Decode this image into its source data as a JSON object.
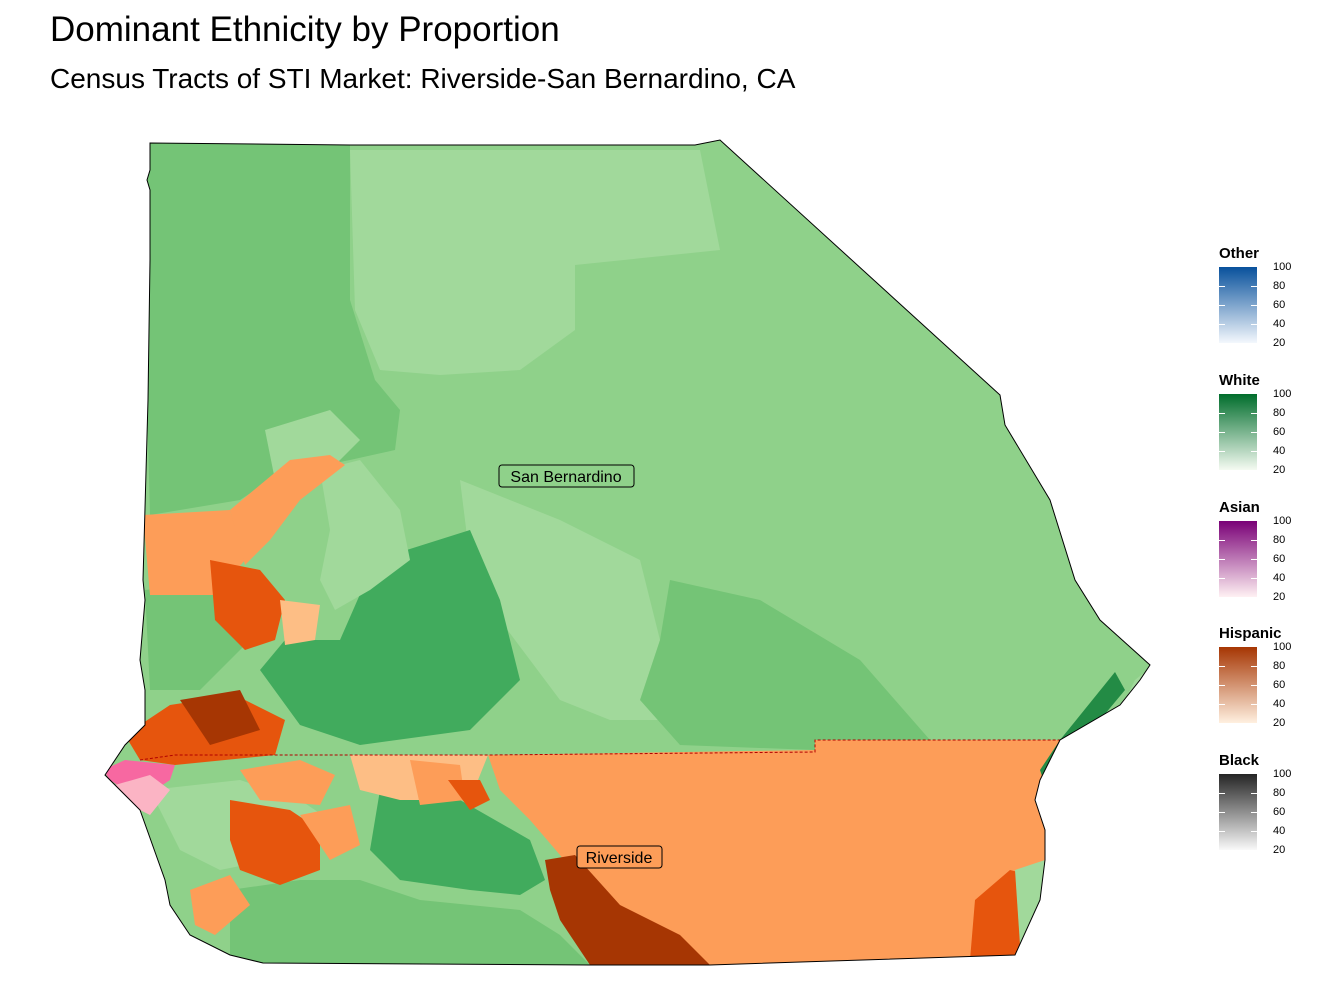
{
  "title": "Dominant Ethnicity by Proportion",
  "subtitle": "Census Tracts of STI Market: Riverside-San Bernardino, CA",
  "counties": [
    {
      "name": "San Bernardino"
    },
    {
      "name": "Riverside"
    }
  ],
  "legends": [
    {
      "title": "Other",
      "ticks": [
        "100",
        "80",
        "60",
        "40",
        "20"
      ],
      "color_low": "#f4f8fd",
      "color_high": "#08519c"
    },
    {
      "title": "White",
      "ticks": [
        "100",
        "80",
        "60",
        "40",
        "20"
      ],
      "color_low": "#f5fbf2",
      "color_high": "#006d2c"
    },
    {
      "title": "Asian",
      "ticks": [
        "100",
        "80",
        "60",
        "40",
        "20"
      ],
      "color_low": "#fff1f3",
      "color_high": "#7a0177"
    },
    {
      "title": "Hispanic",
      "ticks": [
        "100",
        "80",
        "60",
        "40",
        "20"
      ],
      "color_low": "#fff0e0",
      "color_high": "#a63603"
    },
    {
      "title": "Black",
      "ticks": [
        "100",
        "80",
        "60",
        "40",
        "20"
      ],
      "color_low": "#f9f9f9",
      "color_high": "#252525"
    }
  ],
  "colors": {
    "white_light": "#a1d99b",
    "white_mid": "#8fd18a",
    "white_base": "#74c476",
    "white_dark": "#41ab5d",
    "white_darker": "#238b45",
    "hispanic_light": "#fdbe85",
    "hispanic_mid": "#fd9d58",
    "hispanic_dark": "#e6550d",
    "hispanic_darker": "#a63603",
    "asian_mid": "#f768a1",
    "asian_light": "#fbb4c4",
    "outline": "#000000",
    "county_boundary": "#b30000"
  }
}
